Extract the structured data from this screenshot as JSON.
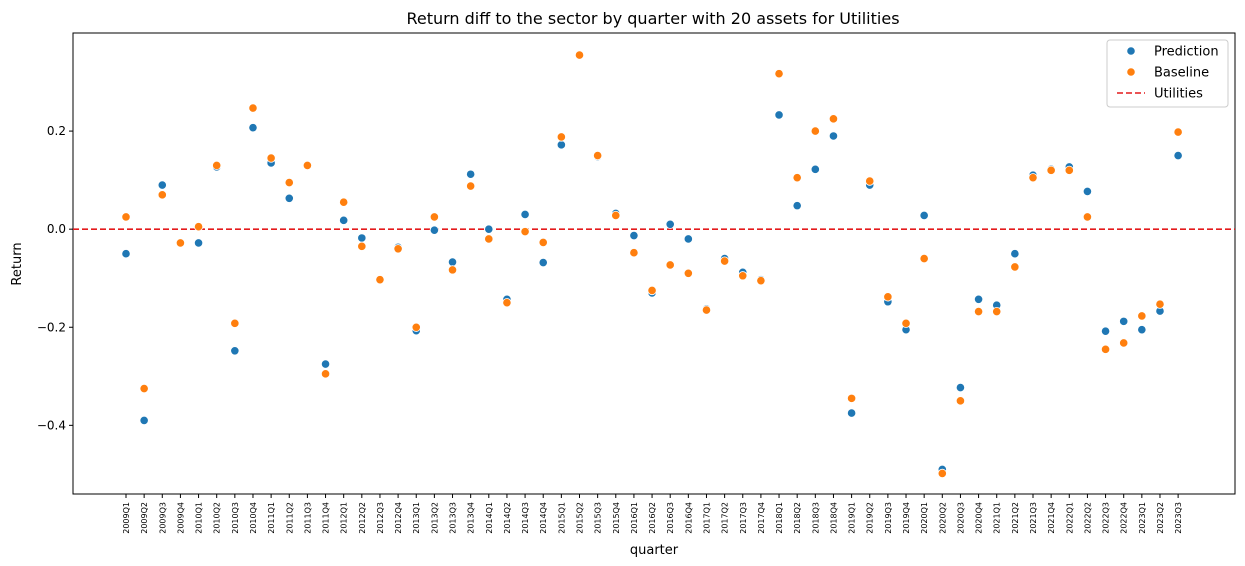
{
  "chart_data": {
    "type": "scatter",
    "title": "Return diff to the sector by quarter with 20 assets for Utilities",
    "xlabel": "quarter",
    "ylabel": "Return",
    "ylim": [
      -0.54,
      0.4
    ],
    "yticks": [
      -0.4,
      -0.2,
      0.0,
      0.2
    ],
    "ytick_labels": [
      "−0.4",
      "−0.2",
      "0.0",
      "0.2"
    ],
    "grid": false,
    "legend_position": "top-right",
    "categories": [
      "2009Q1",
      "2009Q2",
      "2009Q3",
      "2009Q4",
      "2010Q1",
      "2010Q2",
      "2010Q3",
      "2010Q4",
      "2011Q1",
      "2011Q2",
      "2011Q3",
      "2011Q4",
      "2012Q1",
      "2012Q2",
      "2012Q3",
      "2012Q4",
      "2013Q1",
      "2013Q2",
      "2013Q3",
      "2013Q4",
      "2014Q1",
      "2014Q2",
      "2014Q3",
      "2014Q4",
      "2015Q1",
      "2015Q2",
      "2015Q3",
      "2015Q4",
      "2016Q1",
      "2016Q2",
      "2016Q3",
      "2016Q4",
      "2017Q1",
      "2017Q2",
      "2017Q3",
      "2017Q4",
      "2018Q1",
      "2018Q2",
      "2018Q3",
      "2018Q4",
      "2019Q1",
      "2019Q2",
      "2019Q3",
      "2019Q4",
      "2020Q1",
      "2020Q2",
      "2020Q3",
      "2020Q4",
      "2021Q1",
      "2021Q2",
      "2021Q3",
      "2021Q4",
      "2022Q1",
      "2022Q2",
      "2022Q3",
      "2022Q4",
      "2023Q1",
      "2023Q2",
      "2023Q3"
    ],
    "series": [
      {
        "name": "Prediction",
        "color": "#1f77b4",
        "values": [
          -0.05,
          -0.39,
          0.09,
          -0.028,
          -0.028,
          0.127,
          -0.248,
          0.207,
          0.135,
          0.063,
          0.13,
          -0.275,
          0.018,
          -0.018,
          -0.103,
          -0.037,
          -0.207,
          -0.002,
          -0.067,
          0.112,
          0.0,
          -0.143,
          0.03,
          -0.068,
          0.172,
          0.355,
          0.148,
          0.032,
          -0.013,
          -0.13,
          0.01,
          -0.02,
          -0.163,
          -0.06,
          -0.088,
          -0.103,
          0.233,
          0.048,
          0.122,
          0.19,
          -0.375,
          0.09,
          -0.148,
          -0.205,
          0.028,
          -0.49,
          -0.323,
          -0.143,
          -0.155,
          -0.05,
          0.11,
          0.122,
          0.127,
          0.077,
          -0.208,
          -0.188,
          -0.205,
          -0.167,
          0.15
        ]
      },
      {
        "name": "Baseline",
        "color": "#ff7f0e",
        "values": [
          0.025,
          -0.325,
          0.07,
          -0.028,
          0.005,
          0.13,
          -0.192,
          0.247,
          0.145,
          0.095,
          0.13,
          -0.295,
          0.055,
          -0.035,
          -0.103,
          -0.04,
          -0.2,
          0.025,
          -0.083,
          0.088,
          -0.02,
          -0.15,
          -0.005,
          -0.027,
          0.188,
          0.355,
          0.15,
          0.028,
          -0.048,
          -0.125,
          -0.073,
          -0.09,
          -0.165,
          -0.065,
          -0.095,
          -0.105,
          0.317,
          0.105,
          0.2,
          0.225,
          -0.345,
          0.098,
          -0.138,
          -0.192,
          -0.06,
          -0.498,
          -0.35,
          -0.168,
          -0.168,
          -0.077,
          0.105,
          0.12,
          0.12,
          0.025,
          -0.245,
          -0.232,
          -0.177,
          -0.153,
          0.198
        ]
      }
    ],
    "reference_line": {
      "name": "Utilities",
      "y": 0.0,
      "color": "#e41a1c",
      "style": "dashed"
    }
  }
}
